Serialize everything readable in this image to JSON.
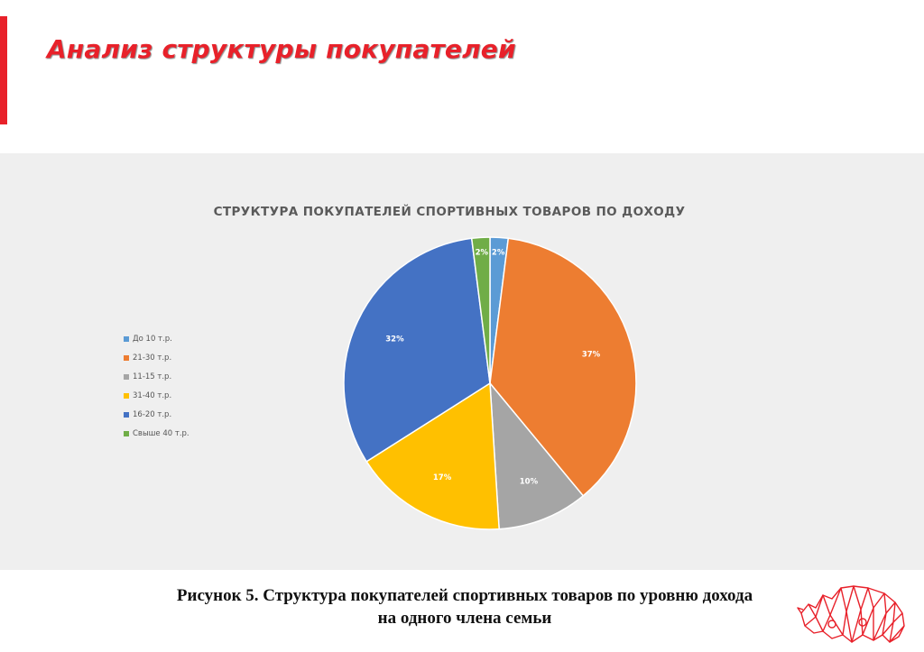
{
  "slide": {
    "title": "Анализ структуры покупателей",
    "caption_line1": "Рисунок 5. Структура покупателей спортивных товаров по уровню дохода",
    "caption_line2": "на одного члена семьи"
  },
  "colors": {
    "accent": "#e8212a",
    "panel_bg": "#efefef",
    "logo": "#e8212a"
  },
  "logo": {
    "icon": "rhino-logo-icon"
  },
  "chart_data": {
    "type": "pie",
    "title": "СТРУКТУРА ПОКУПАТЕЛЕЙ СПОРТИВНЫХ ТОВАРОВ ПО ДОХОДУ",
    "legend_position": "left",
    "categories": [
      "До 10 т.р.",
      "21-30 т.р.",
      "11-15 т.р.",
      "31-40 т.р.",
      "16-20 т.р.",
      "Свыше 40 т.р."
    ],
    "values": [
      2,
      37,
      10,
      17,
      32,
      2
    ],
    "labels": [
      "2%",
      "37%",
      "10%",
      "17%",
      "32%",
      "2%"
    ],
    "colors": [
      "#5b9bd5",
      "#ed7d31",
      "#a5a5a5",
      "#ffc000",
      "#4472c4",
      "#70ad47"
    ]
  }
}
